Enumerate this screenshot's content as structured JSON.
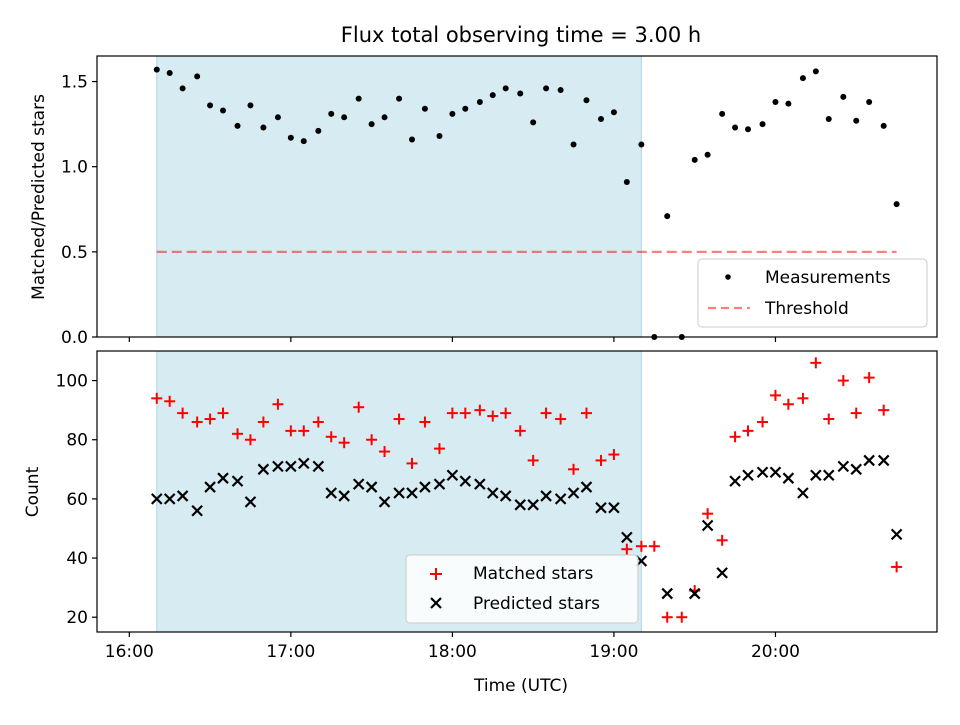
{
  "title": "Flux total observing time = 3.00 h",
  "colors": {
    "shade": "#add8e6",
    "measurements": "#000000",
    "threshold": "#ff0000",
    "matched": "#ff0000",
    "predicted": "#000000"
  },
  "top_panel": {
    "ylabel": "Matched/Predicted stars",
    "legend": {
      "measurements": "Measurements",
      "threshold": "Threshold"
    }
  },
  "bottom_panel": {
    "ylabel": "Count",
    "xlabel": "Time (UTC)",
    "legend": {
      "matched": "Matched stars",
      "predicted": "Predicted stars"
    }
  },
  "chart_data": [
    {
      "type": "scatter",
      "panel": "top",
      "title": "Flux total observing time = 3.00 h",
      "xlabel": "",
      "ylabel": "Matched/Predicted stars",
      "x_unit": "hours UTC",
      "xlim": [
        15.8,
        21.0
      ],
      "ylim": [
        0,
        1.65
      ],
      "xticks": [
        16,
        17,
        18,
        19,
        20
      ],
      "xtick_labels": [
        "16:00",
        "17:00",
        "18:00",
        "19:00",
        "20:00"
      ],
      "yticks": [
        0,
        0.5,
        1.0,
        1.5
      ],
      "ytick_labels": [
        "0.0",
        "0.5",
        "1.0",
        "1.5"
      ],
      "grid": false,
      "legend_position": "lower right",
      "shaded_x_range": [
        16.17,
        19.17
      ],
      "threshold": {
        "name": "Threshold",
        "y": 0.5,
        "x": [
          16.17,
          20.75
        ],
        "style": "dashed"
      },
      "series": [
        {
          "name": "Measurements",
          "x": [
            16.17,
            16.25,
            16.33,
            16.42,
            16.5,
            16.58,
            16.67,
            16.75,
            16.83,
            16.92,
            17.0,
            17.08,
            17.17,
            17.25,
            17.33,
            17.42,
            17.5,
            17.58,
            17.67,
            17.75,
            17.83,
            17.92,
            18.0,
            18.08,
            18.17,
            18.25,
            18.33,
            18.42,
            18.5,
            18.58,
            18.67,
            18.75,
            18.83,
            18.92,
            19.0,
            19.08,
            19.17,
            19.25,
            19.33,
            19.42,
            19.5,
            19.58,
            19.67,
            19.75,
            19.83,
            19.92,
            20.0,
            20.08,
            20.17,
            20.25,
            20.33,
            20.42,
            20.5,
            20.58,
            20.67,
            20.75
          ],
          "y": [
            1.57,
            1.55,
            1.46,
            1.53,
            1.36,
            1.33,
            1.24,
            1.36,
            1.23,
            1.29,
            1.17,
            1.15,
            1.21,
            1.31,
            1.29,
            1.4,
            1.25,
            1.29,
            1.4,
            1.16,
            1.34,
            1.18,
            1.31,
            1.34,
            1.38,
            1.42,
            1.46,
            1.43,
            1.26,
            1.46,
            1.45,
            1.13,
            1.39,
            1.28,
            1.32,
            0.91,
            1.13,
            0.0,
            0.71,
            0.0,
            1.04,
            1.07,
            1.31,
            1.23,
            1.22,
            1.25,
            1.38,
            1.37,
            1.52,
            1.56,
            1.28,
            1.41,
            1.27,
            1.38,
            1.24,
            0.78
          ]
        }
      ]
    },
    {
      "type": "scatter",
      "panel": "bottom",
      "title": "",
      "xlabel": "Time (UTC)",
      "ylabel": "Count",
      "x_unit": "hours UTC",
      "xlim": [
        15.8,
        21.0
      ],
      "ylim": [
        15,
        110
      ],
      "xticks": [
        16,
        17,
        18,
        19,
        20
      ],
      "xtick_labels": [
        "16:00",
        "17:00",
        "18:00",
        "19:00",
        "20:00"
      ],
      "yticks": [
        20,
        40,
        60,
        80,
        100
      ],
      "ytick_labels": [
        "20",
        "40",
        "60",
        "80",
        "100"
      ],
      "grid": false,
      "legend_position": "lower center",
      "shaded_x_range": [
        16.17,
        19.17
      ],
      "series": [
        {
          "name": "Matched stars",
          "marker": "plus",
          "x": [
            16.17,
            16.25,
            16.33,
            16.42,
            16.5,
            16.58,
            16.67,
            16.75,
            16.83,
            16.92,
            17.0,
            17.08,
            17.17,
            17.25,
            17.33,
            17.42,
            17.5,
            17.58,
            17.67,
            17.75,
            17.83,
            17.92,
            18.0,
            18.08,
            18.17,
            18.25,
            18.33,
            18.42,
            18.5,
            18.58,
            18.67,
            18.75,
            18.83,
            18.92,
            19.0,
            19.08,
            19.17,
            19.25,
            19.33,
            19.42,
            19.5,
            19.58,
            19.67,
            19.75,
            19.83,
            19.92,
            20.0,
            20.08,
            20.17,
            20.25,
            20.33,
            20.42,
            20.5,
            20.58,
            20.67,
            20.75
          ],
          "y": [
            94,
            93,
            89,
            86,
            87,
            89,
            82,
            80,
            86,
            92,
            83,
            83,
            86,
            81,
            79,
            91,
            80,
            76,
            87,
            72,
            86,
            77,
            89,
            89,
            90,
            88,
            89,
            83,
            73,
            89,
            87,
            70,
            89,
            73,
            75,
            43,
            44,
            44,
            20,
            20,
            29,
            55,
            46,
            81,
            83,
            86,
            95,
            92,
            94,
            106,
            87,
            100,
            89,
            101,
            90,
            37
          ]
        },
        {
          "name": "Predicted stars",
          "marker": "x",
          "x": [
            16.17,
            16.25,
            16.33,
            16.42,
            16.5,
            16.58,
            16.67,
            16.75,
            16.83,
            16.92,
            17.0,
            17.08,
            17.17,
            17.25,
            17.33,
            17.42,
            17.5,
            17.58,
            17.67,
            17.75,
            17.83,
            17.92,
            18.0,
            18.08,
            18.17,
            18.25,
            18.33,
            18.42,
            18.5,
            18.58,
            18.67,
            18.75,
            18.83,
            18.92,
            19.0,
            19.08,
            19.17,
            19.33,
            19.5,
            19.58,
            19.67,
            19.75,
            19.83,
            19.92,
            20.0,
            20.08,
            20.17,
            20.25,
            20.33,
            20.42,
            20.5,
            20.58,
            20.67,
            20.75
          ],
          "y": [
            60,
            60,
            61,
            56,
            64,
            67,
            66,
            59,
            70,
            71,
            71,
            72,
            71,
            62,
            61,
            65,
            64,
            59,
            62,
            62,
            64,
            65,
            68,
            66,
            65,
            62,
            61,
            58,
            58,
            61,
            60,
            62,
            64,
            57,
            57,
            47,
            39,
            28,
            28,
            51,
            35,
            66,
            68,
            69,
            69,
            67,
            62,
            68,
            68,
            71,
            70,
            73,
            73,
            48
          ]
        }
      ]
    }
  ]
}
